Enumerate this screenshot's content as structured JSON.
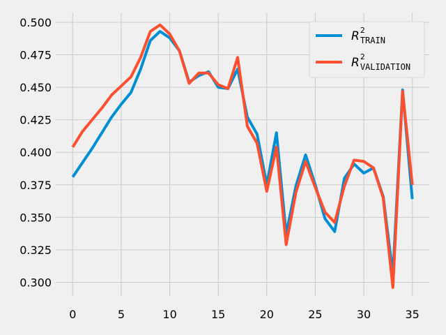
{
  "chart_data": {
    "type": "line",
    "style": "fivethirtyeight",
    "background": "#f0f0f0",
    "grid": true,
    "grid_color": "#cbcbcb",
    "legend_placement": "upper right",
    "xlim": [
      -1.75,
      36.75
    ],
    "ylim": [
      0.2895,
      0.5075
    ],
    "x_ticks": [
      0,
      5,
      10,
      15,
      20,
      25,
      30,
      35
    ],
    "x_tick_labels": [
      "0",
      "5",
      "10",
      "15",
      "20",
      "25",
      "30",
      "35"
    ],
    "y_ticks": [
      0.3,
      0.325,
      0.35,
      0.375,
      0.4,
      0.425,
      0.45,
      0.475,
      0.5
    ],
    "y_tick_labels": [
      "0.300",
      "0.325",
      "0.350",
      "0.375",
      "0.400",
      "0.425",
      "0.450",
      "0.475",
      "0.500"
    ],
    "x": [
      0,
      1,
      2,
      3,
      4,
      5,
      6,
      7,
      8,
      9,
      10,
      11,
      12,
      13,
      14,
      15,
      16,
      17,
      18,
      19,
      20,
      21,
      22,
      23,
      24,
      25,
      26,
      27,
      28,
      29,
      30,
      31,
      32,
      33,
      34,
      35
    ],
    "series": [
      {
        "name_base": "R",
        "name_sup": "2",
        "name_sub": "TRAIN",
        "color": "#008fd5",
        "values": [
          0.381,
          0.392,
          0.403,
          0.415,
          0.427,
          0.437,
          0.446,
          0.464,
          0.486,
          0.493,
          0.488,
          0.478,
          0.454,
          0.459,
          0.462,
          0.45,
          0.449,
          0.464,
          0.427,
          0.414,
          0.375,
          0.415,
          0.337,
          0.374,
          0.398,
          0.375,
          0.349,
          0.339,
          0.38,
          0.391,
          0.384,
          0.388,
          0.366,
          0.306,
          0.448,
          0.364
        ]
      },
      {
        "name_base": "R",
        "name_sup": "2",
        "name_sub": "VALIDATION",
        "color": "#fc4f30",
        "values": [
          0.404,
          0.416,
          0.425,
          0.434,
          0.444,
          0.451,
          0.458,
          0.473,
          0.493,
          0.498,
          0.491,
          0.478,
          0.453,
          0.461,
          0.461,
          0.452,
          0.449,
          0.473,
          0.42,
          0.407,
          0.37,
          0.404,
          0.329,
          0.369,
          0.393,
          0.373,
          0.354,
          0.346,
          0.374,
          0.394,
          0.393,
          0.388,
          0.365,
          0.296,
          0.447,
          0.375
        ]
      }
    ]
  }
}
